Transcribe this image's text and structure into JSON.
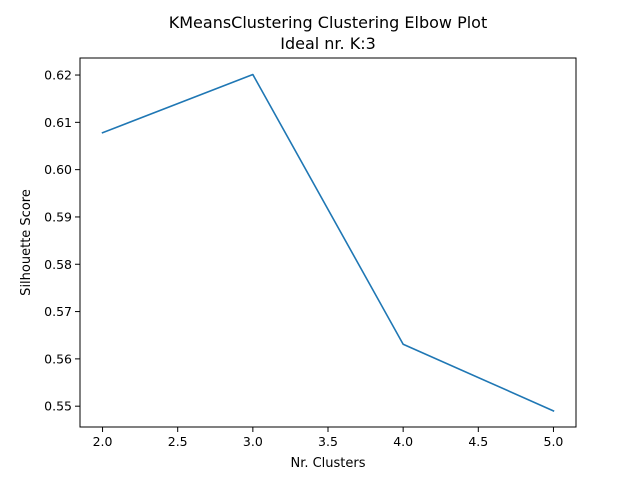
{
  "chart_data": {
    "type": "line",
    "title": "KMeansClustering Clustering Elbow Plot",
    "subtitle": "Ideal nr. K:3",
    "xlabel": "Nr. Clusters",
    "ylabel": "Silhouette Score",
    "x": [
      2,
      3,
      4,
      5
    ],
    "series": [
      {
        "values": [
          0.6078,
          0.6201,
          0.5631,
          0.549
        ],
        "color": "#1f77b4"
      }
    ],
    "xlim": [
      1.85,
      5.15
    ],
    "ylim": [
      0.5456,
      0.6236
    ],
    "xticks": [
      2.0,
      2.5,
      3.0,
      3.5,
      4.0,
      4.5,
      5.0
    ],
    "xtick_labels": [
      "2.0",
      "2.5",
      "3.0",
      "3.5",
      "4.0",
      "4.5",
      "5.0"
    ],
    "yticks": [
      0.55,
      0.56,
      0.57,
      0.58,
      0.59,
      0.6,
      0.61,
      0.62
    ],
    "ytick_labels": [
      "0.55",
      "0.56",
      "0.57",
      "0.58",
      "0.59",
      "0.60",
      "0.61",
      "0.62"
    ],
    "grid": false,
    "legend": false
  }
}
